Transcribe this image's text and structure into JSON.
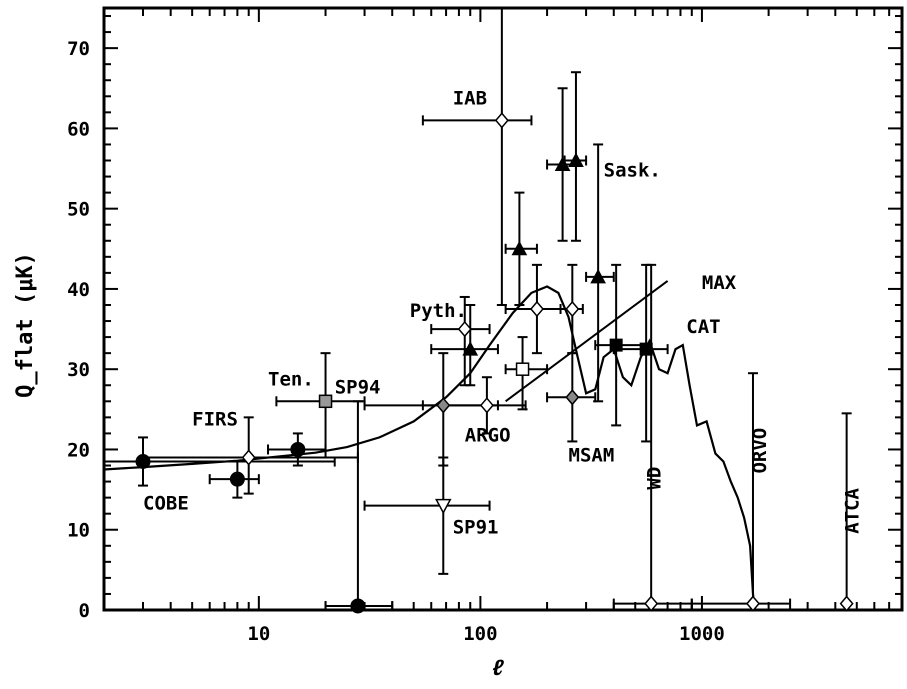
{
  "chart_data": {
    "type": "scatter",
    "xscale": "log",
    "xlim": [
      2,
      8000
    ],
    "ylim": [
      0,
      75
    ],
    "xlabel": "ℓ",
    "ylabel": "Q_flat (μK)",
    "x_ticks": [
      {
        "value": 10,
        "label": "10"
      },
      {
        "value": 100,
        "label": "100"
      },
      {
        "value": 1000,
        "label": "1000"
      }
    ],
    "y_ticks": [
      {
        "value": 0,
        "label": "0"
      },
      {
        "value": 10,
        "label": "10"
      },
      {
        "value": 20,
        "label": "20"
      },
      {
        "value": 30,
        "label": "30"
      },
      {
        "value": 40,
        "label": "40"
      },
      {
        "value": 50,
        "label": "50"
      },
      {
        "value": 60,
        "label": "60"
      },
      {
        "value": 70,
        "label": "70"
      }
    ],
    "points": [
      {
        "x": 3,
        "y": 18.5,
        "xmin": 2,
        "xmax": 22,
        "ylo": 15.5,
        "yhi": 21.5,
        "marker": "filled-circle"
      },
      {
        "x": 8,
        "y": 16.3,
        "xmin": 6,
        "xmax": 10,
        "ylo": 14,
        "yhi": 18.5,
        "marker": "filled-circle"
      },
      {
        "x": 9,
        "y": 19,
        "xmin": 3,
        "xmax": 28,
        "ylo": 14.5,
        "yhi": 24,
        "marker": "open-diamond"
      },
      {
        "x": 15,
        "y": 20,
        "xmin": 11,
        "xmax": 20,
        "ylo": 18,
        "yhi": 22,
        "marker": "filled-circle"
      },
      {
        "x": 20,
        "y": 26,
        "xmin": 12,
        "xmax": 30,
        "ylo": 19,
        "yhi": 32,
        "marker": "gray-square"
      },
      {
        "x": 28,
        "y": 0.5,
        "xmin": 20,
        "xmax": 40,
        "ylo": 0,
        "yhi": 26,
        "marker": "filled-circle"
      },
      {
        "x": 68,
        "y": 25.5,
        "xmin": 30,
        "xmax": 120,
        "ylo": 18,
        "yhi": 32,
        "marker": "gray-diamond"
      },
      {
        "x": 68,
        "y": 13,
        "xmin": 30,
        "xmax": 110,
        "ylo": 4.5,
        "yhi": 19,
        "marker": "open-triangle-down"
      },
      {
        "x": 85,
        "y": 35,
        "xmin": 60,
        "xmax": 110,
        "ylo": 28,
        "yhi": 39,
        "marker": "open-diamond"
      },
      {
        "x": 90,
        "y": 32.5,
        "xmin": 60,
        "xmax": 120,
        "ylo": 28,
        "yhi": 38,
        "marker": "filled-triangle"
      },
      {
        "x": 107,
        "y": 25.5,
        "xmin": 55,
        "xmax": 160,
        "ylo": 22,
        "yhi": 29,
        "marker": "open-diamond"
      },
      {
        "x": 125,
        "y": 61,
        "xmin": 55,
        "xmax": 170,
        "ylo": 38,
        "yhi": 78,
        "marker": "open-diamond"
      },
      {
        "x": 150,
        "y": 45,
        "xmin": 130,
        "xmax": 180,
        "ylo": 38,
        "yhi": 52,
        "marker": "filled-triangle"
      },
      {
        "x": 155,
        "y": 30,
        "xmin": 130,
        "xmax": 200,
        "ylo": 25,
        "yhi": 34,
        "marker": "open-square"
      },
      {
        "x": 180,
        "y": 37.5,
        "xmin": 130,
        "xmax": 260,
        "ylo": 32,
        "yhi": 43,
        "marker": "open-diamond"
      },
      {
        "x": 235,
        "y": 55.5,
        "xmin": 200,
        "xmax": 270,
        "ylo": 46,
        "yhi": 65,
        "marker": "filled-triangle"
      },
      {
        "x": 270,
        "y": 56,
        "xmin": 240,
        "xmax": 300,
        "ylo": 46,
        "yhi": 67,
        "marker": "filled-triangle"
      },
      {
        "x": 260,
        "y": 26.5,
        "xmin": 200,
        "xmax": 330,
        "ylo": 21,
        "yhi": 32,
        "marker": "gray-diamond"
      },
      {
        "x": 260,
        "y": 37.5,
        "xmin": 230,
        "xmax": 290,
        "ylo": 32,
        "yhi": 43,
        "marker": "open-diamond"
      },
      {
        "x": 340,
        "y": 41.5,
        "xmin": 300,
        "xmax": 400,
        "ylo": 26,
        "yhi": 58,
        "marker": "filled-triangle"
      },
      {
        "x": 410,
        "y": 33,
        "xmin": 330,
        "xmax": 580,
        "ylo": 23,
        "yhi": 43,
        "marker": "filled-square"
      },
      {
        "x": 560,
        "y": 32.5,
        "xmin": 400,
        "xmax": 700,
        "ylo": 21,
        "yhi": 43,
        "marker": "filled-square"
      },
      {
        "x": 590,
        "y": 0.8,
        "xmin": 400,
        "xmax": 900,
        "ylo": 0,
        "yhi": 43,
        "marker": "open-diamond"
      },
      {
        "x": 1700,
        "y": 0.8,
        "xmin": 900,
        "xmax": 2500,
        "ylo": 0,
        "yhi": 29.5,
        "marker": "open-diamond"
      },
      {
        "x": 4500,
        "y": 0.8,
        "xmin": 4500,
        "xmax": 4500,
        "ylo": 0,
        "yhi": 24.5,
        "marker": "open-diamond"
      }
    ],
    "model_curve": {
      "x": [
        2,
        3,
        5,
        8,
        12,
        18,
        25,
        35,
        50,
        70,
        90,
        110,
        140,
        170,
        200,
        225,
        250,
        275,
        300,
        330,
        360,
        400,
        440,
        480,
        530,
        580,
        640,
        700,
        760,
        820,
        880,
        950,
        1050,
        1150,
        1250,
        1350,
        1450,
        1550,
        1650,
        1700,
        1720
      ],
      "y": [
        17.5,
        17.8,
        18.2,
        18.6,
        19.1,
        19.6,
        20.3,
        21.5,
        23.5,
        26.5,
        29.5,
        33,
        37,
        39.5,
        40.3,
        39.5,
        36.5,
        31.5,
        27,
        27.5,
        31.5,
        32.5,
        29,
        28,
        31.5,
        33.5,
        30,
        29.5,
        32.5,
        33,
        28,
        23,
        23.5,
        19.5,
        18.5,
        16,
        14,
        11.5,
        8,
        2,
        0.5
      ]
    },
    "max_line": {
      "x": [
        130,
        700
      ],
      "y": [
        26,
        41
      ]
    },
    "annotations": [
      {
        "text": "IAB",
        "x": 75,
        "y": 63
      },
      {
        "text": "Sask.",
        "x": 360,
        "y": 54
      },
      {
        "text": "MAX",
        "x": 1000,
        "y": 40
      },
      {
        "text": "CAT",
        "x": 850,
        "y": 34.5
      },
      {
        "text": "Pyth.",
        "x": 48,
        "y": 36.5
      },
      {
        "text": "Ten.",
        "x": 11,
        "y": 28
      },
      {
        "text": "SP94",
        "x": 22,
        "y": 27
      },
      {
        "text": "FIRS",
        "x": 5,
        "y": 23
      },
      {
        "text": "ARGO",
        "x": 85,
        "y": 21
      },
      {
        "text": "MSAM",
        "x": 250,
        "y": 18.5
      },
      {
        "text": "COBE",
        "x": 3,
        "y": 12.5
      },
      {
        "text": "SP91",
        "x": 75,
        "y": 9.5
      },
      {
        "text": "WD",
        "x": 650,
        "y": 15,
        "rotate": -90
      },
      {
        "text": "ORVO",
        "x": 1950,
        "y": 17,
        "rotate": -90
      },
      {
        "text": "ATCA",
        "x": 5100,
        "y": 9.5,
        "rotate": -90
      }
    ]
  }
}
